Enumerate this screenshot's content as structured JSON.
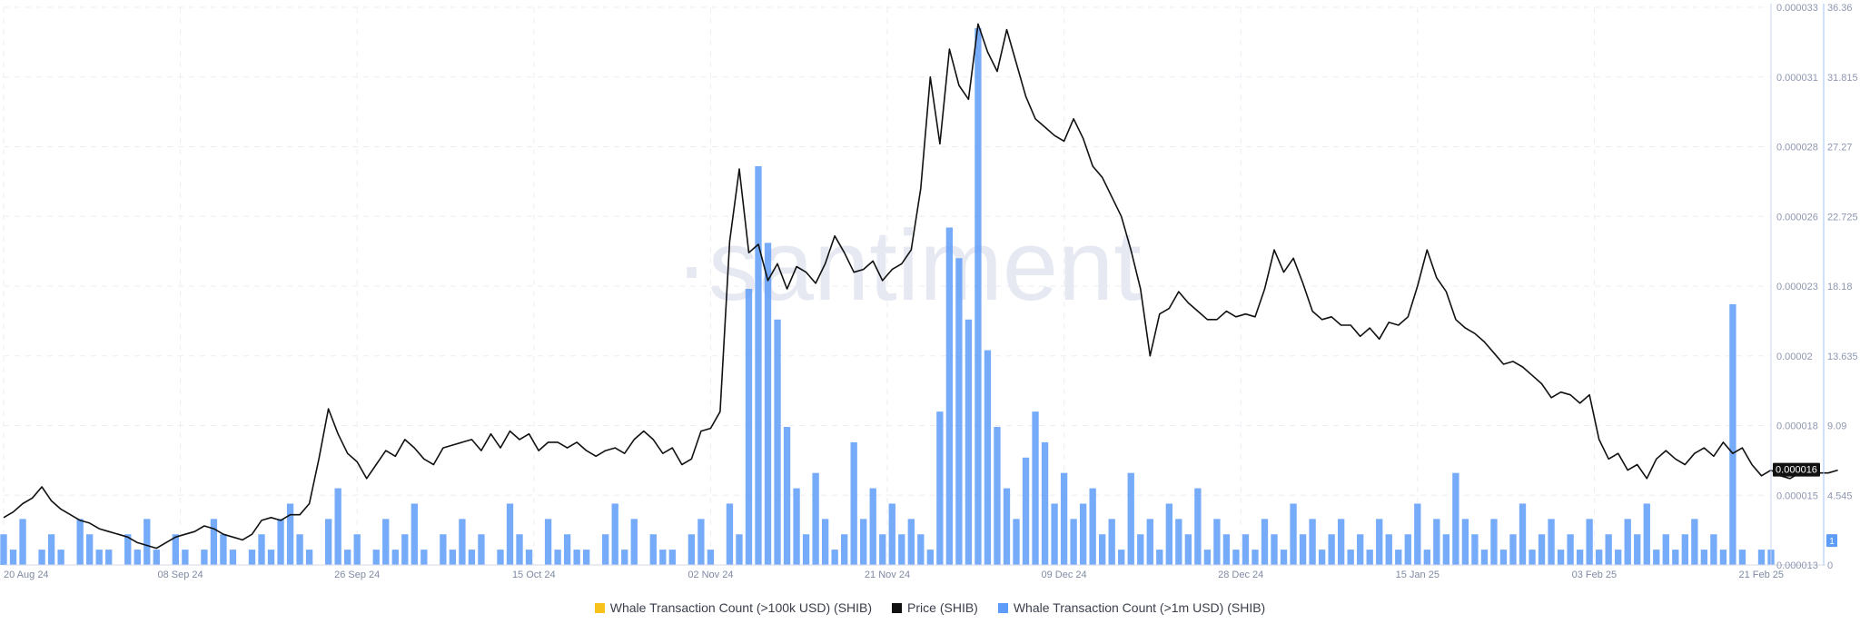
{
  "chart_data": {
    "type": "line",
    "watermark": "·santiment",
    "x_tick_labels": [
      "20 Aug 24",
      "08 Sep 24",
      "26 Sep 24",
      "15 Oct 24",
      "02 Nov 24",
      "21 Nov 24",
      "09 Dec 24",
      "28 Dec 24",
      "15 Jan 25",
      "03 Feb 25",
      "21 Feb 25"
    ],
    "price_axis": {
      "ticks": [
        "0.000033",
        "0.000031",
        "0.000028",
        "0.000026",
        "0.000023",
        "0.00002",
        "0.000018",
        "0.000015",
        "0.000013"
      ],
      "ylim": [
        1.3e-05,
        3.3e-05
      ]
    },
    "count_axis": {
      "ticks": [
        "36.36",
        "31.815",
        "27.27",
        "22.725",
        "18.18",
        "13.635",
        "9.09",
        "4.545",
        "0"
      ],
      "ylim": [
        0,
        36.36
      ]
    },
    "current_price_label": "0.000016",
    "current_count_label": "1",
    "series": [
      {
        "name": "Whale Transaction Count (>100k USD) (SHIB)",
        "color": "#f7c21b",
        "axis": "none",
        "values": []
      },
      {
        "name": "Price (SHIB)",
        "color": "#111111",
        "axis": "price",
        "x_range": [
          0,
          185
        ],
        "values": [
          1.47e-05,
          1.49e-05,
          1.52e-05,
          1.54e-05,
          1.58e-05,
          1.53e-05,
          1.5e-05,
          1.48e-05,
          1.46e-05,
          1.45e-05,
          1.43e-05,
          1.42e-05,
          1.41e-05,
          1.4e-05,
          1.38e-05,
          1.37e-05,
          1.36e-05,
          1.38e-05,
          1.4e-05,
          1.41e-05,
          1.42e-05,
          1.44e-05,
          1.43e-05,
          1.41e-05,
          1.4e-05,
          1.39e-05,
          1.41e-05,
          1.46e-05,
          1.47e-05,
          1.46e-05,
          1.48e-05,
          1.48e-05,
          1.52e-05,
          1.68e-05,
          1.86e-05,
          1.77e-05,
          1.7e-05,
          1.67e-05,
          1.61e-05,
          1.66e-05,
          1.71e-05,
          1.69e-05,
          1.75e-05,
          1.72e-05,
          1.68e-05,
          1.66e-05,
          1.72e-05,
          1.73e-05,
          1.74e-05,
          1.75e-05,
          1.71e-05,
          1.77e-05,
          1.72e-05,
          1.78e-05,
          1.75e-05,
          1.77e-05,
          1.71e-05,
          1.74e-05,
          1.74e-05,
          1.72e-05,
          1.74e-05,
          1.71e-05,
          1.69e-05,
          1.71e-05,
          1.72e-05,
          1.7e-05,
          1.75e-05,
          1.78e-05,
          1.75e-05,
          1.7e-05,
          1.72e-05,
          1.66e-05,
          1.68e-05,
          1.78e-05,
          1.79e-05,
          1.85e-05,
          2.46e-05,
          2.72e-05,
          2.42e-05,
          2.45e-05,
          2.32e-05,
          2.38e-05,
          2.29e-05,
          2.37e-05,
          2.35e-05,
          2.31e-05,
          2.38e-05,
          2.48e-05,
          2.42e-05,
          2.35e-05,
          2.36e-05,
          2.39e-05,
          2.32e-05,
          2.36e-05,
          2.38e-05,
          2.43e-05,
          2.65e-05,
          3.05e-05,
          2.81e-05,
          3.15e-05,
          3.02e-05,
          2.97e-05,
          3.24e-05,
          3.14e-05,
          3.07e-05,
          3.22e-05,
          3.1e-05,
          2.98e-05,
          2.9e-05,
          2.87e-05,
          2.84e-05,
          2.82e-05,
          2.9e-05,
          2.83e-05,
          2.73e-05,
          2.69e-05,
          2.62e-05,
          2.55e-05,
          2.43e-05,
          2.29e-05,
          2.05e-05,
          2.2e-05,
          2.22e-05,
          2.28e-05,
          2.24e-05,
          2.21e-05,
          2.18e-05,
          2.18e-05,
          2.21e-05,
          2.19e-05,
          2.2e-05,
          2.19e-05,
          2.29e-05,
          2.43e-05,
          2.35e-05,
          2.4e-05,
          2.31e-05,
          2.21e-05,
          2.18e-05,
          2.19e-05,
          2.16e-05,
          2.16e-05,
          2.12e-05,
          2.15e-05,
          2.11e-05,
          2.17e-05,
          2.16e-05,
          2.19e-05,
          2.3e-05,
          2.43e-05,
          2.33e-05,
          2.28e-05,
          2.18e-05,
          2.15e-05,
          2.13e-05,
          2.1e-05,
          2.06e-05,
          2.02e-05,
          2.03e-05,
          2.01e-05,
          1.98e-05,
          1.95e-05,
          1.9e-05,
          1.92e-05,
          1.91e-05,
          1.88e-05,
          1.91e-05,
          1.75e-05,
          1.68e-05,
          1.7e-05,
          1.64e-05,
          1.66e-05,
          1.61e-05,
          1.68e-05,
          1.71e-05,
          1.68e-05,
          1.66e-05,
          1.7e-05,
          1.72e-05,
          1.69e-05,
          1.74e-05,
          1.7e-05,
          1.72e-05,
          1.66e-05,
          1.62e-05,
          1.64e-05,
          1.62e-05,
          1.61e-05,
          1.63e-05,
          1.64e-05,
          1.63e-05,
          1.63e-05,
          1.64e-05
        ]
      },
      {
        "name": "Whale Transaction Count (>1m USD) (SHIB)",
        "color": "#5d9cf8",
        "axis": "count",
        "x_range": [
          0,
          185
        ],
        "values": [
          2,
          1,
          3,
          0,
          1,
          2,
          1,
          0,
          3,
          2,
          1,
          1,
          0,
          2,
          1,
          3,
          1,
          0,
          2,
          1,
          0,
          1,
          3,
          2,
          1,
          0,
          1,
          2,
          1,
          3,
          4,
          2,
          1,
          0,
          3,
          5,
          1,
          2,
          0,
          1,
          3,
          1,
          2,
          4,
          1,
          0,
          2,
          1,
          3,
          1,
          2,
          0,
          1,
          4,
          2,
          1,
          0,
          3,
          1,
          2,
          1,
          1,
          0,
          2,
          4,
          1,
          3,
          0,
          2,
          1,
          1,
          0,
          2,
          3,
          1,
          0,
          4,
          2,
          18,
          26,
          21,
          16,
          9,
          5,
          2,
          6,
          3,
          1,
          2,
          8,
          3,
          5,
          2,
          4,
          2,
          3,
          2,
          1,
          10,
          22,
          20,
          16,
          35,
          14,
          9,
          5,
          3,
          7,
          10,
          8,
          4,
          6,
          3,
          4,
          5,
          2,
          3,
          1,
          6,
          2,
          3,
          1,
          4,
          3,
          2,
          5,
          1,
          3,
          2,
          1,
          2,
          1,
          3,
          2,
          1,
          4,
          2,
          3,
          1,
          2,
          3,
          1,
          2,
          1,
          3,
          2,
          1,
          2,
          4,
          1,
          3,
          2,
          6,
          3,
          2,
          1,
          3,
          1,
          2,
          4,
          1,
          2,
          3,
          1,
          2,
          1,
          3,
          1,
          2,
          1,
          3,
          2,
          4,
          1,
          2,
          1,
          2,
          3,
          1,
          2,
          1,
          17,
          1,
          0,
          1,
          1
        ]
      }
    ]
  },
  "legend": [
    {
      "label": "Whale Transaction Count (>100k USD) (SHIB)",
      "color": "#f7c21b"
    },
    {
      "label": "Price (SHIB)",
      "color": "#111111"
    },
    {
      "label": "Whale Transaction Count (>1m USD) (SHIB)",
      "color": "#5d9cf8"
    }
  ]
}
